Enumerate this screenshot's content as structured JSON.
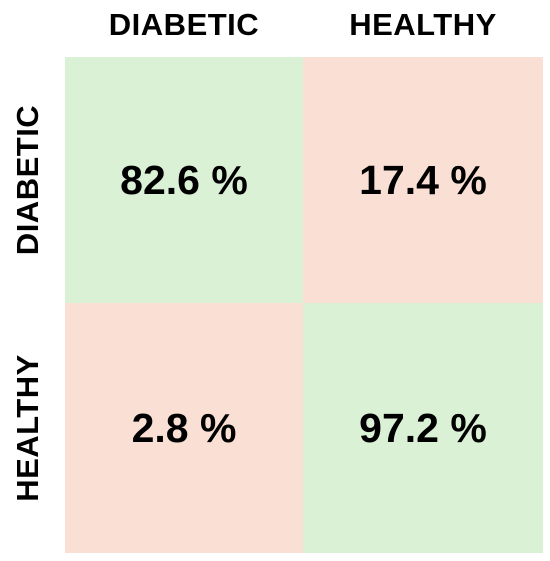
{
  "chart_data": {
    "type": "heatmap",
    "columns": [
      "DIABETIC",
      "HEALTHY"
    ],
    "rows": [
      "DIABETIC",
      "HEALTHY"
    ],
    "values": [
      [
        82.6,
        17.4
      ],
      [
        2.8,
        97.2
      ]
    ],
    "labels": [
      [
        "82.6 %",
        "17.4 %"
      ],
      [
        "2.8 %",
        "97.2 %"
      ]
    ],
    "colors": {
      "diagonal": "#daf1d6",
      "off_diagonal": "#f9dfd4"
    }
  }
}
